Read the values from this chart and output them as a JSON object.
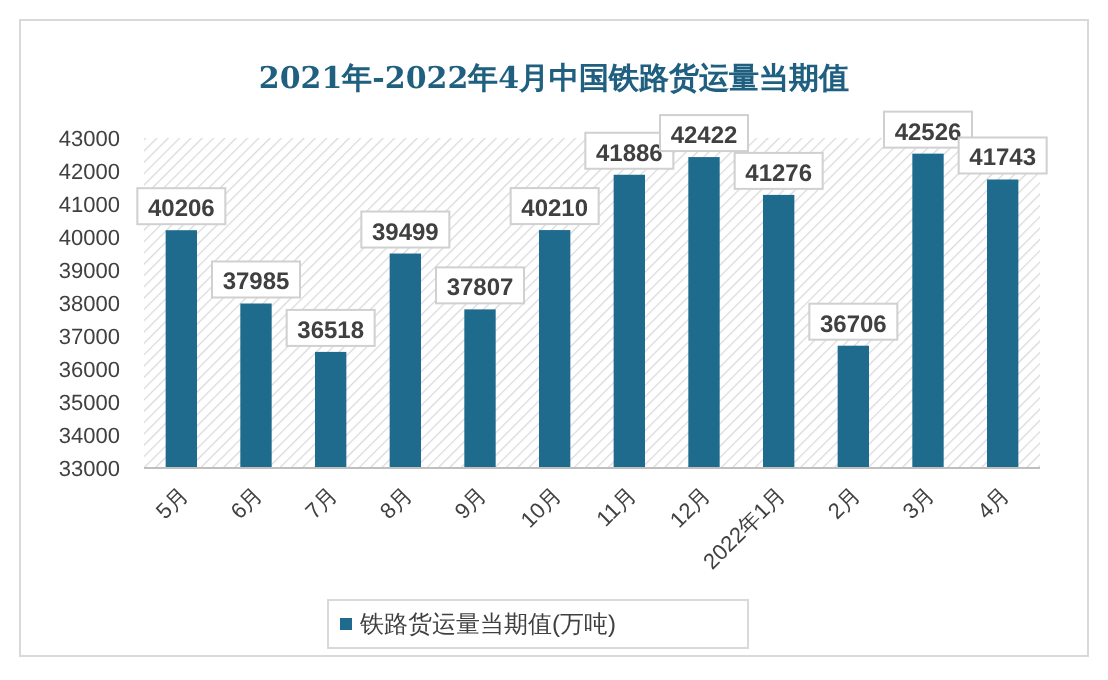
{
  "chart_data": {
    "type": "bar",
    "title": "2021年-2022年4月中国铁路货运量当期值",
    "categories": [
      "5月",
      "6月",
      "7月",
      "8月",
      "9月",
      "10月",
      "11月",
      "12月",
      "2022年1月",
      "2月",
      "3月",
      "4月"
    ],
    "series": [
      {
        "name": "铁路货运量当期值(万吨)",
        "color": "#1f6b8e",
        "values": [
          40206,
          37985,
          36518,
          39499,
          37807,
          40210,
          41886,
          42422,
          41276,
          36706,
          42526,
          41743
        ]
      }
    ],
    "ylim": [
      33000,
      43000
    ],
    "yticks": [
      33000,
      34000,
      35000,
      36000,
      37000,
      38000,
      39000,
      40000,
      41000,
      42000,
      43000
    ],
    "data_labels": true,
    "legend": "bottom",
    "grid": false
  }
}
